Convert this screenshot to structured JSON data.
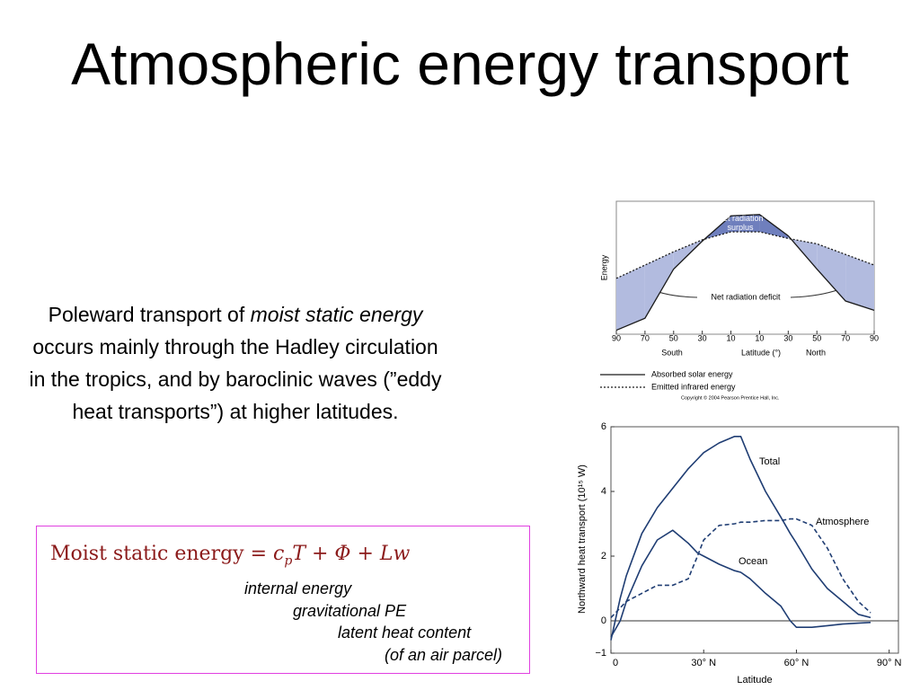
{
  "slide": {
    "title": "Atmospheric energy transport",
    "paragraph": [
      "Poleward transport of ",
      "moist static energy",
      " occurs mainly through the Hadley circulation in the tropics, and by baroclinic waves (”eddy heat transports”) at higher latitudes."
    ],
    "formula": {
      "lhs": "Moist static energy = ",
      "c": "c",
      "sub": "p",
      "rest": "T + Φ + Lw"
    },
    "notes": [
      "internal energy",
      "gravitational PE",
      "latent heat content",
      "(of an air parcel)"
    ]
  },
  "chart_data": [
    {
      "type": "line",
      "y_label": "Energy",
      "x_label": "Latitude (°)",
      "x_side_labels": [
        "South",
        "North"
      ],
      "annotations": [
        "Net radiation surplus",
        "Net radiation deficit"
      ],
      "copyright": "Copyright © 2004 Pearson Prentice Hall, Inc.",
      "categories": [
        "90",
        "70",
        "50",
        "30",
        "10",
        "10",
        "30",
        "50",
        "70",
        "90"
      ],
      "ylim": [
        0,
        100
      ],
      "series": [
        {
          "name": "Absorbed solar energy",
          "color": "#1a1a1a",
          "style": "solid",
          "values": [
            3,
            12,
            49,
            70,
            89,
            90,
            74,
            49,
            25,
            18
          ]
        },
        {
          "name": "Emitted infrared energy",
          "color": "#1a1a1a",
          "style": "dotted",
          "values": [
            42,
            52,
            62,
            71,
            77,
            77,
            72,
            68,
            60,
            52
          ]
        }
      ]
    },
    {
      "type": "line",
      "y_label": "Northward heat transport (10¹⁵ W)",
      "x_label": "Latitude",
      "xlim": [
        0,
        93
      ],
      "xticks": [
        0,
        {
          "value": 30,
          "label": "30° N"
        },
        {
          "value": 60,
          "label": "60° N"
        },
        {
          "value": 90,
          "label": "90° N"
        }
      ],
      "ylim": [
        -1,
        6
      ],
      "yticks": [
        {
          "value": -1,
          "label": "−1"
        },
        0,
        2,
        4,
        6
      ],
      "hline": 0,
      "x": [
        0,
        3,
        5,
        10,
        15,
        20,
        25,
        28,
        30,
        35,
        40,
        42,
        45,
        50,
        55,
        58,
        60,
        65,
        70,
        75,
        80,
        84
      ],
      "series": [
        {
          "name": "Total",
          "color": "#1f3d73",
          "style": "solid",
          "values": [
            -0.6,
            0.7,
            1.4,
            2.7,
            3.5,
            4.1,
            4.7,
            5.0,
            5.2,
            5.5,
            5.7,
            5.7,
            5.0,
            4.0,
            3.2,
            2.7,
            2.4,
            1.6,
            1.0,
            0.6,
            0.2,
            0.1
          ]
        },
        {
          "name": "Atmosphere",
          "color": "#1f3d73",
          "style": "dashed",
          "values": [
            0.1,
            0.4,
            0.6,
            0.85,
            1.1,
            1.1,
            1.3,
            2.0,
            2.5,
            2.95,
            3.0,
            3.05,
            3.05,
            3.1,
            3.1,
            3.15,
            3.15,
            2.95,
            2.25,
            1.3,
            0.6,
            0.25
          ]
        },
        {
          "name": "Ocean",
          "color": "#1f3d73",
          "style": "solid",
          "values": [
            -0.5,
            0,
            0.6,
            1.7,
            2.5,
            2.8,
            2.4,
            2.1,
            2.0,
            1.75,
            1.55,
            1.5,
            1.3,
            0.85,
            0.45,
            0,
            -0.2,
            -0.2,
            -0.15,
            -0.1,
            -0.07,
            -0.05
          ]
        }
      ]
    }
  ]
}
